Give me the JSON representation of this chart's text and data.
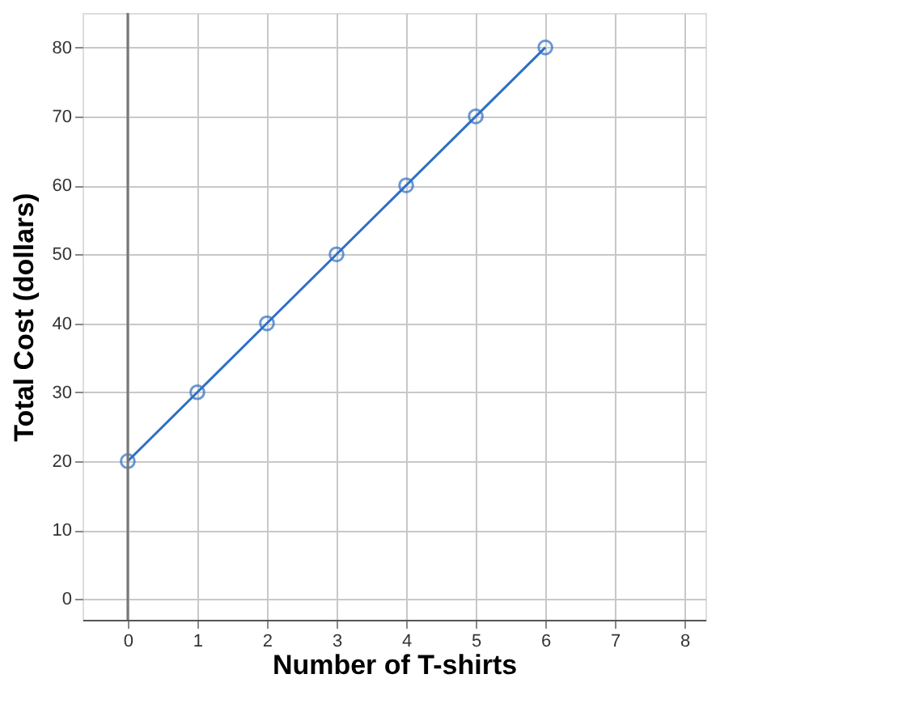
{
  "chart_data": {
    "type": "line",
    "xlabel": "Number of T-shirts",
    "ylabel": "Total Cost (dollars)",
    "x": [
      0,
      1,
      2,
      3,
      4,
      5,
      6
    ],
    "series": [
      {
        "color": "#2f6fc4",
        "values": [
          20,
          30,
          40,
          50,
          60,
          70,
          80
        ]
      }
    ],
    "xlim": [
      -0.65,
      8.3
    ],
    "ylim": [
      -3,
      85
    ],
    "xticks": [
      0,
      1,
      2,
      3,
      4,
      5,
      6,
      7,
      8
    ],
    "yticks": [
      0,
      10,
      20,
      30,
      40,
      50,
      60,
      70,
      80
    ],
    "grid": true,
    "marker": "circle",
    "line_style": "solid"
  }
}
